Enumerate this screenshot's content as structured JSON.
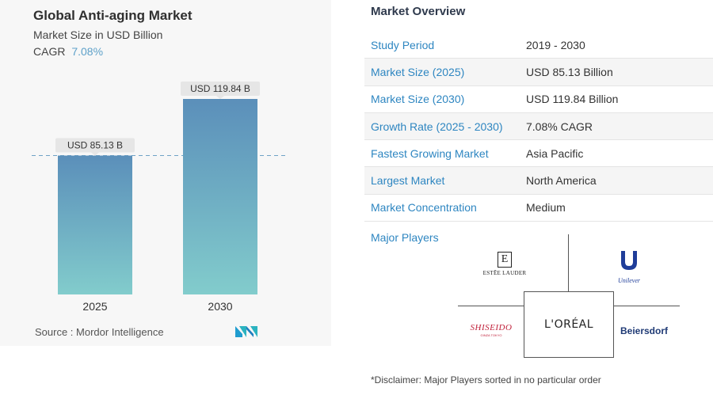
{
  "chart_data": {
    "type": "bar",
    "title": "Global Anti-aging Market",
    "subtitle": "Market Size in USD Billion",
    "cagr_label": "CAGR",
    "cagr_value": "7.08%",
    "categories": [
      "2025",
      "2030"
    ],
    "values": [
      85.13,
      119.84
    ],
    "data_labels": [
      "USD 85.13 B",
      "USD 119.84 B"
    ],
    "ylim": [
      0,
      119.84
    ],
    "reference_line": 85.13,
    "xlabel": "",
    "ylabel": "",
    "grid": false,
    "bar_gradient": [
      "#5b8fba",
      "#82cccc"
    ]
  },
  "source": {
    "label": "Source :",
    "value": "Mordor Intelligence",
    "logo_icon": "mordor-intelligence-logo-icon"
  },
  "overview": {
    "title": "Market Overview",
    "rows": [
      {
        "label": "Study Period",
        "value": "2019 - 2030"
      },
      {
        "label": "Market Size (2025)",
        "value": "USD 85.13 Billion"
      },
      {
        "label": "Market Size (2030)",
        "value": "USD 119.84 Billion"
      },
      {
        "label": "Growth Rate (2025 - 2030)",
        "value": "7.08% CAGR"
      },
      {
        "label": "Fastest Growing Market",
        "value": "Asia Pacific"
      },
      {
        "label": "Largest Market",
        "value": "North America"
      },
      {
        "label": "Market Concentration",
        "value": "Medium"
      }
    ]
  },
  "players": {
    "title": "Major Players",
    "estee_mark": "E",
    "estee_name": "ESTĒE LAUDER",
    "unilever_name": "Unilever",
    "shiseido_name": "SHISEIDO",
    "shiseido_sub": "GINZA TOKYO",
    "loreal_name": "L'ORÉAL",
    "beiersdorf_name": "Beiersdorf"
  },
  "disclaimer": "*Disclaimer: Major Players sorted in no particular order",
  "colors": {
    "accent_blue": "#2e86c1",
    "cagr_blue": "#5ea1c9",
    "label_bg": "#e6e6e6",
    "unilever_blue": "#1f3d99",
    "shiseido_red": "#c0203a"
  }
}
